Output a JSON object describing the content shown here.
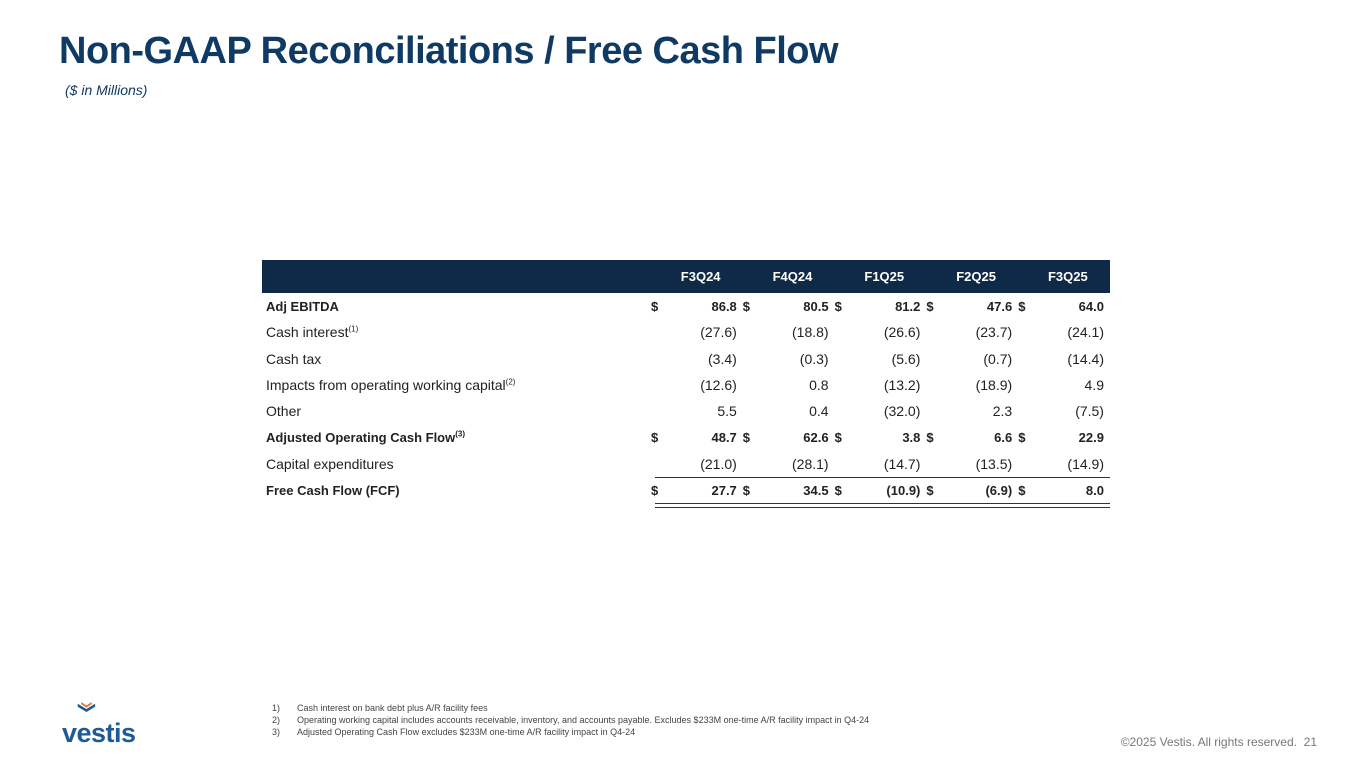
{
  "title": "Non-GAAP Reconciliations / Free Cash Flow",
  "subtitle": "($ in Millions)",
  "table": {
    "columns": [
      "F3Q24",
      "F4Q24",
      "F1Q25",
      "F2Q25",
      "F3Q25"
    ],
    "rows": [
      {
        "label": "Adj EBITDA",
        "sup": "",
        "bold": true,
        "currency": "$",
        "values": [
          "86.8",
          "80.5",
          "81.2",
          "47.6",
          "64.0"
        ]
      },
      {
        "label": "Cash interest",
        "sup": "(1)",
        "bold": false,
        "currency": "",
        "values": [
          "(27.6)",
          "(18.8)",
          "(26.6)",
          "(23.7)",
          "(24.1)"
        ]
      },
      {
        "label": "Cash tax",
        "sup": "",
        "bold": false,
        "currency": "",
        "values": [
          "(3.4)",
          "(0.3)",
          "(5.6)",
          "(0.7)",
          "(14.4)"
        ]
      },
      {
        "label": "Impacts from operating working capital",
        "sup": "(2)",
        "bold": false,
        "currency": "",
        "values": [
          "(12.6)",
          "0.8",
          "(13.2)",
          "(18.9)",
          "4.9"
        ]
      },
      {
        "label": "Other",
        "sup": "",
        "bold": false,
        "currency": "",
        "values": [
          "5.5",
          "0.4",
          "(32.0)",
          "2.3",
          "(7.5)"
        ]
      },
      {
        "label": "Adjusted Operating Cash Flow",
        "sup": "(3)",
        "bold": true,
        "currency": "$",
        "values": [
          "48.7",
          "62.6",
          "3.8",
          "6.6",
          "22.9"
        ]
      },
      {
        "label": "Capital expenditures",
        "sup": "",
        "bold": false,
        "currency": "",
        "values": [
          "(21.0)",
          "(28.1)",
          "(14.7)",
          "(13.5)",
          "(14.9)"
        ]
      },
      {
        "label": "Free Cash Flow (FCF)",
        "sup": "",
        "bold": true,
        "currency": "$",
        "values": [
          "27.7",
          "34.5",
          "(10.9)",
          "(6.9)",
          "8.0"
        ]
      }
    ]
  },
  "footnotes": [
    {
      "num": "1)",
      "text": "Cash interest on bank debt plus A/R facility fees"
    },
    {
      "num": "2)",
      "text": "Operating working capital includes accounts receivable, inventory, and accounts payable. Excludes $233M one-time A/R facility impact in Q4-24"
    },
    {
      "num": "3)",
      "text": "Adjusted Operating Cash Flow excludes $233M one-time A/R facility impact in Q4-24"
    }
  ],
  "logo": {
    "text": "vestis",
    "icon": "vestis-chevron-icon"
  },
  "copyright": "©2025 Vestis. All rights reserved.",
  "page_number": "21",
  "colors": {
    "brand_navy": "#0f3a63",
    "header_bg": "#0f2a47",
    "logo_blue": "#1e5a96",
    "logo_orange": "#e8732a"
  }
}
